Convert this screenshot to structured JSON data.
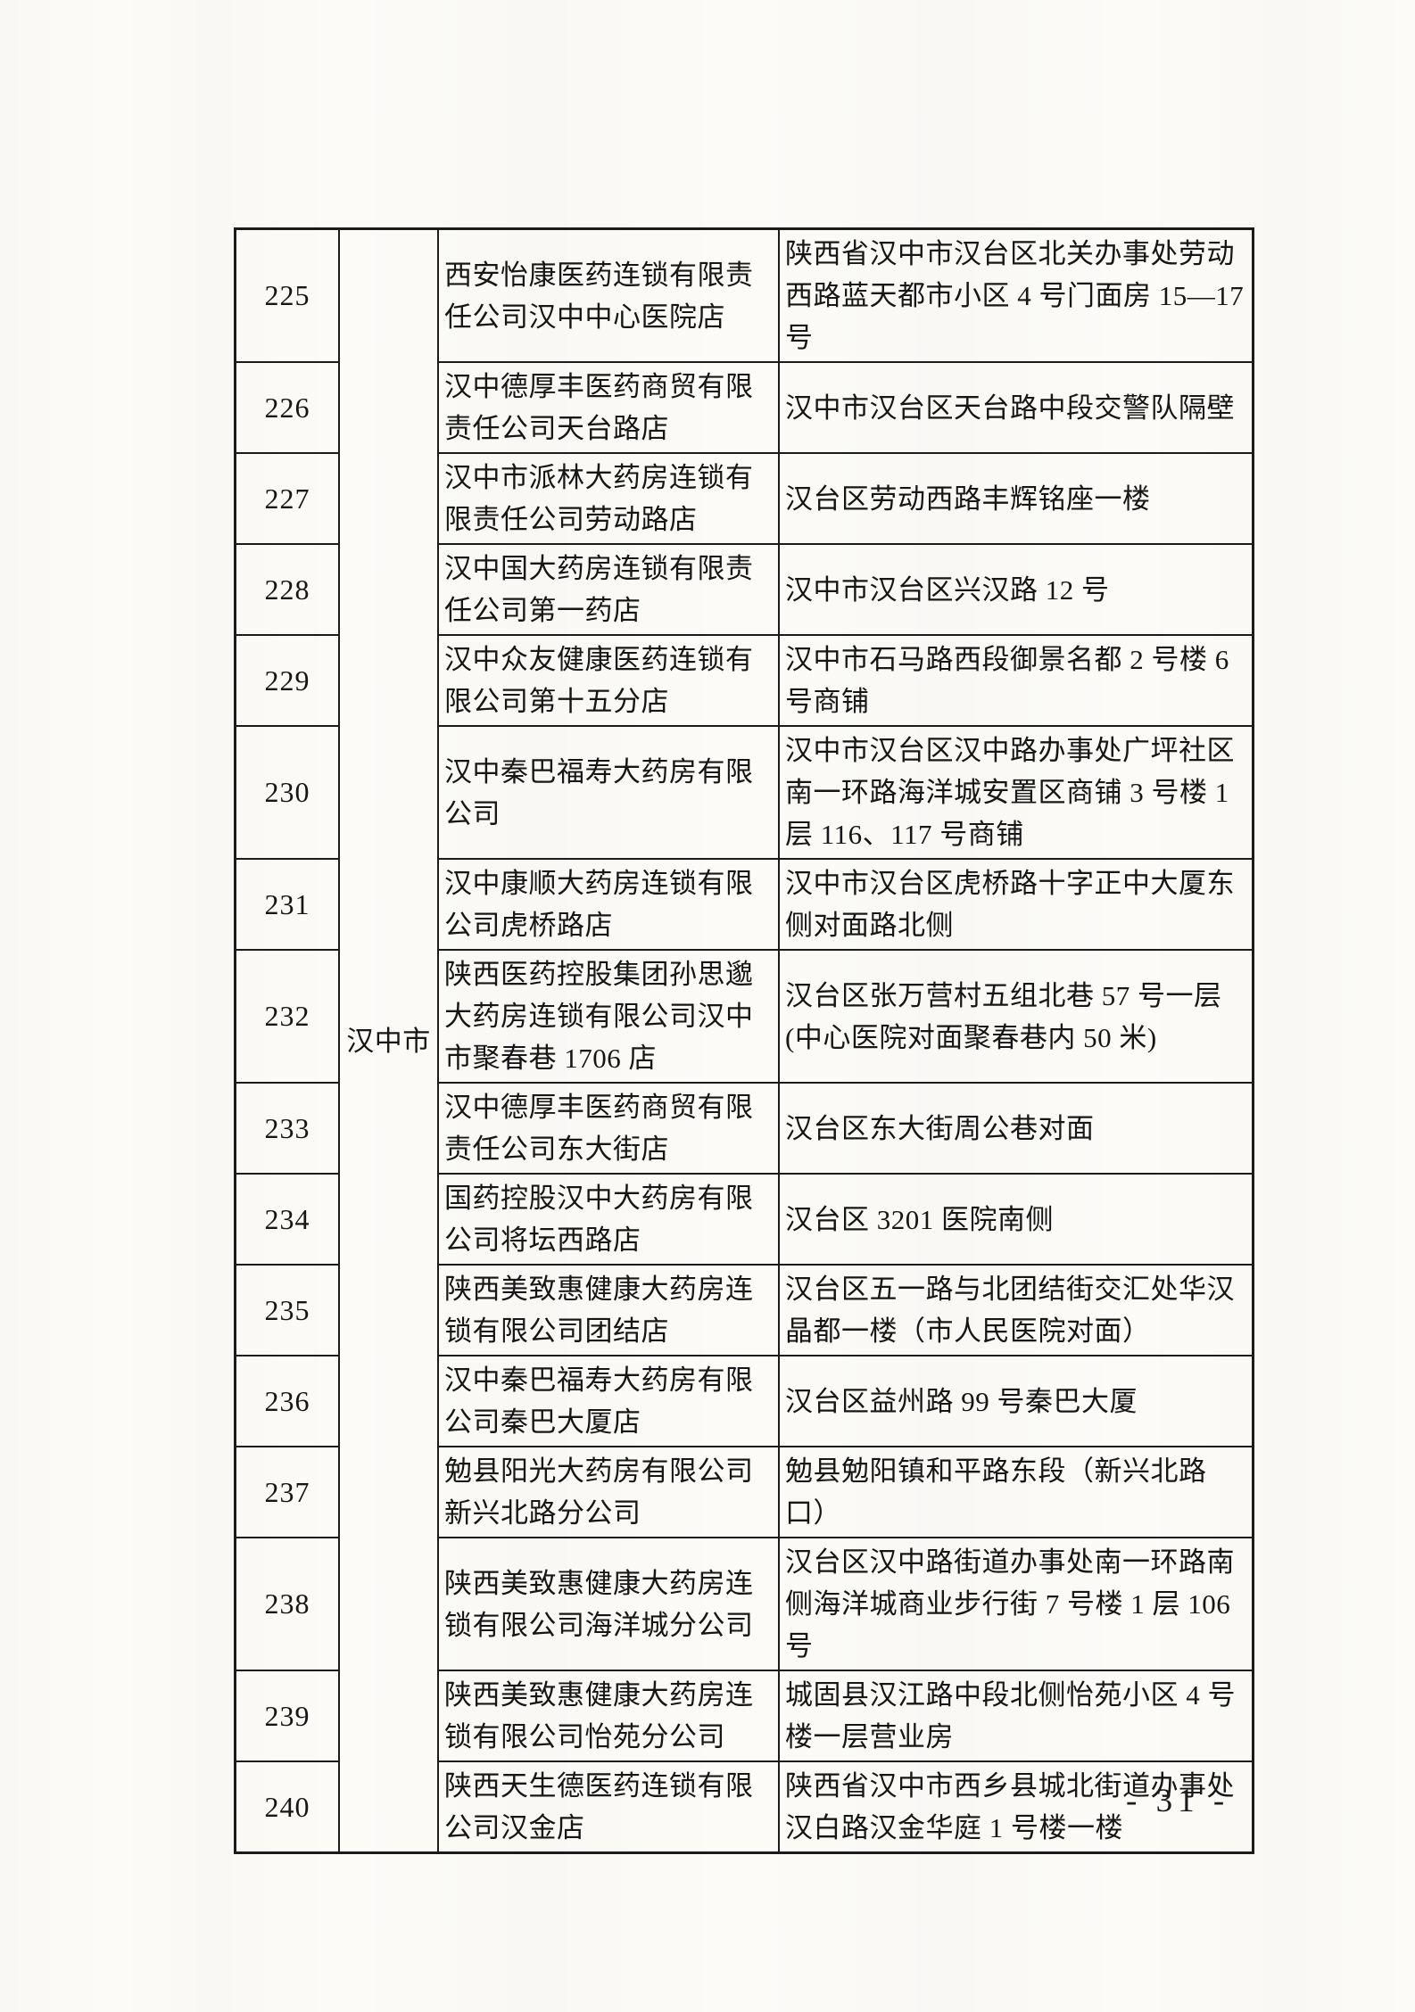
{
  "page": {
    "footer_page_number": "- 31 -"
  },
  "table": {
    "city": "汉中市",
    "rows": [
      {
        "no": "225",
        "name": "西安怡康医药连锁有限责任公司汉中中心医院店",
        "address": "陕西省汉中市汉台区北关办事处劳动西路蓝天都市小区 4 号门面房 15—17 号"
      },
      {
        "no": "226",
        "name": "汉中德厚丰医药商贸有限责任公司天台路店",
        "address": "汉中市汉台区天台路中段交警队隔壁"
      },
      {
        "no": "227",
        "name": "汉中市派林大药房连锁有限责任公司劳动路店",
        "address": "汉台区劳动西路丰辉铭座一楼"
      },
      {
        "no": "228",
        "name": "汉中国大药房连锁有限责任公司第一药店",
        "address": "汉中市汉台区兴汉路 12 号"
      },
      {
        "no": "229",
        "name": "汉中众友健康医药连锁有限公司第十五分店",
        "address": "汉中市石马路西段御景名都 2 号楼 6 号商铺"
      },
      {
        "no": "230",
        "name": "汉中秦巴福寿大药房有限公司",
        "address": "汉中市汉台区汉中路办事处广坪社区南一环路海洋城安置区商铺 3 号楼 1 层 116、117 号商铺"
      },
      {
        "no": "231",
        "name": "汉中康顺大药房连锁有限公司虎桥路店",
        "address": "汉中市汉台区虎桥路十字正中大厦东侧对面路北侧"
      },
      {
        "no": "232",
        "name": "陕西医药控股集团孙思邈大药房连锁有限公司汉中市聚春巷 1706 店",
        "address": "汉台区张万营村五组北巷 57 号一层(中心医院对面聚春巷内 50 米)"
      },
      {
        "no": "233",
        "name": "汉中德厚丰医药商贸有限责任公司东大街店",
        "address": "汉台区东大街周公巷对面"
      },
      {
        "no": "234",
        "name": "国药控股汉中大药房有限公司将坛西路店",
        "address": "汉台区 3201 医院南侧"
      },
      {
        "no": "235",
        "name": "陕西美致惠健康大药房连锁有限公司团结店",
        "address": "汉台区五一路与北团结街交汇处华汉晶都一楼（市人民医院对面）"
      },
      {
        "no": "236",
        "name": "汉中秦巴福寿大药房有限公司秦巴大厦店",
        "address": "汉台区益州路 99 号秦巴大厦"
      },
      {
        "no": "237",
        "name": "勉县阳光大药房有限公司新兴北路分公司",
        "address": "勉县勉阳镇和平路东段（新兴北路口）"
      },
      {
        "no": "238",
        "name": "陕西美致惠健康大药房连锁有限公司海洋城分公司",
        "address": "汉台区汉中路街道办事处南一环路南侧海洋城商业步行街 7 号楼 1 层 106 号"
      },
      {
        "no": "239",
        "name": "陕西美致惠健康大药房连锁有限公司怡苑分公司",
        "address": "城固县汉江路中段北侧怡苑小区 4 号楼一层营业房"
      },
      {
        "no": "240",
        "name": "陕西天生德医药连锁有限公司汉金店",
        "address": "陕西省汉中市西乡县城北街道办事处汉白路汉金华庭 1 号楼一楼"
      }
    ]
  }
}
